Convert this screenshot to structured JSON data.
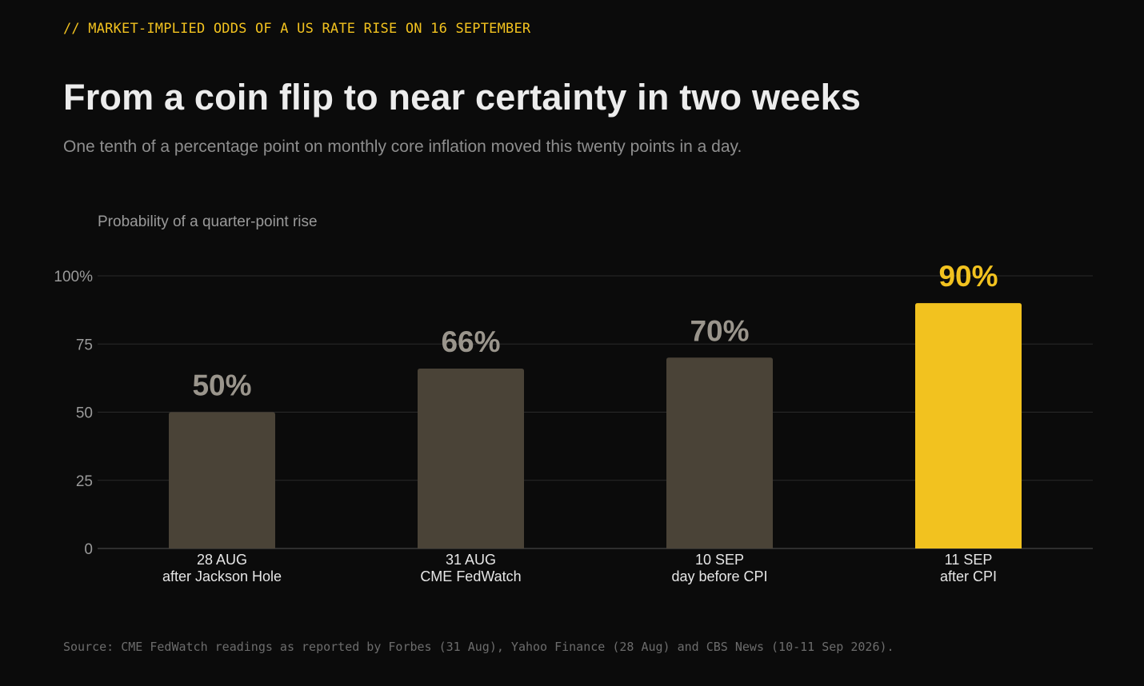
{
  "kicker": "// MARKET-IMPLIED ODDS OF A US RATE RISE ON 16 SEPTEMBER",
  "title": "From a coin flip to near certainty in two weeks",
  "subtitle": "One tenth of a percentage point on monthly core inflation moved this twenty points in a day.",
  "source": "Source: CME FedWatch readings as reported by Forbes (31 Aug), Yahoo Finance (28 Aug) and CBS News (10-11 Sep 2026).",
  "colors": {
    "background": "#0b0b0b",
    "bar_default": "#4a4337",
    "bar_highlight": "#f2c21f",
    "value_default": "#9a958c",
    "value_highlight": "#f2c21f"
  },
  "chart_data": {
    "type": "bar",
    "ylabel": "Probability of a quarter-point rise",
    "ylim": [
      0,
      100
    ],
    "yticks": [
      0,
      25,
      50,
      75,
      100
    ],
    "ytick_labels": [
      "0",
      "25",
      "50",
      "75",
      "100%"
    ],
    "grid": true,
    "categories": [
      {
        "line1": "28 AUG",
        "line2": "after Jackson Hole"
      },
      {
        "line1": "31 AUG",
        "line2": "CME FedWatch"
      },
      {
        "line1": "10 SEP",
        "line2": "day before CPI"
      },
      {
        "line1": "11 SEP",
        "line2": "after CPI"
      }
    ],
    "values": [
      50,
      66,
      70,
      90
    ],
    "value_labels": [
      "50%",
      "66%",
      "70%",
      "90%"
    ],
    "highlight_index": 3
  }
}
